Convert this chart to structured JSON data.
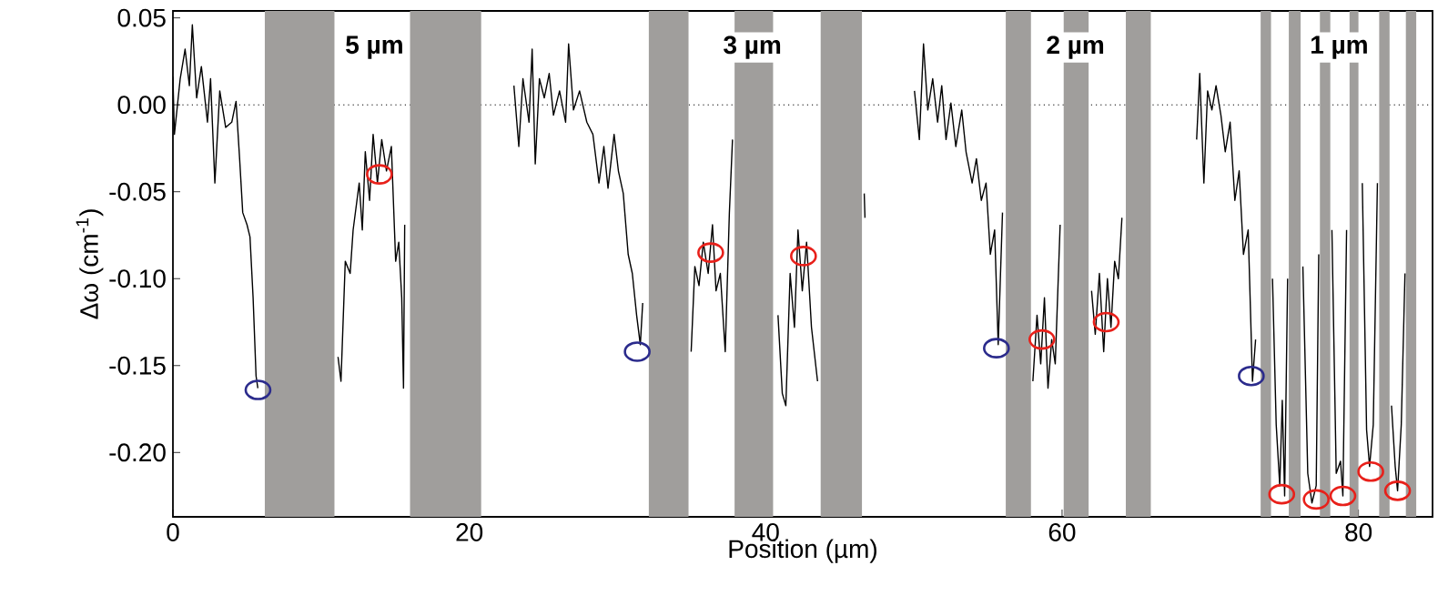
{
  "chart_data": {
    "type": "line",
    "xlabel": "Position (µm)",
    "ylabel": "Δω (cm$^{-1}$)",
    "xlim": [
      0,
      85
    ],
    "ylim": [
      -0.237,
      0.054
    ],
    "xticks": [
      0,
      20,
      40,
      60,
      80
    ],
    "yticks": [
      0.05,
      {
        "value": 0,
        "label": "0.00"
      },
      -0.05,
      {
        "value": -0.1,
        "label": "-0.10"
      },
      -0.15,
      {
        "value": -0.2,
        "label": "-0.20"
      }
    ],
    "grid": false,
    "ref_lines": [
      {
        "axis": "y",
        "value": 0,
        "color": "#000000",
        "line_style": "dotted"
      }
    ],
    "bands": [
      {
        "axis": "x",
        "from": 6.2,
        "to": 10.9,
        "color": "#a09e9c"
      },
      {
        "axis": "x",
        "from": 16.0,
        "to": 20.8,
        "color": "#a09e9c"
      },
      {
        "axis": "x",
        "from": 32.1,
        "to": 34.8,
        "color": "#a09e9c"
      },
      {
        "axis": "x",
        "from": 37.9,
        "to": 40.5,
        "color": "#a09e9c"
      },
      {
        "axis": "x",
        "from": 43.7,
        "to": 46.5,
        "color": "#a09e9c"
      },
      {
        "axis": "x",
        "from": 56.2,
        "to": 57.9,
        "color": "#a09e9c"
      },
      {
        "axis": "x",
        "from": 60.1,
        "to": 61.8,
        "color": "#a09e9c"
      },
      {
        "axis": "x",
        "from": 64.3,
        "to": 66.0,
        "color": "#a09e9c"
      },
      {
        "axis": "x",
        "from": 73.4,
        "to": 74.1,
        "color": "#a09e9c"
      },
      {
        "axis": "x",
        "from": 75.3,
        "to": 76.1,
        "color": "#a09e9c"
      },
      {
        "axis": "x",
        "from": 77.4,
        "to": 78.1,
        "color": "#a09e9c"
      },
      {
        "axis": "x",
        "from": 79.4,
        "to": 80.0,
        "color": "#a09e9c"
      },
      {
        "axis": "x",
        "from": 81.4,
        "to": 82.1,
        "color": "#a09e9c"
      },
      {
        "axis": "x",
        "from": 83.2,
        "to": 83.9,
        "color": "#a09e9c"
      }
    ],
    "annotations": [
      {
        "text": "5 µm",
        "x": 13.6,
        "y": 0.033
      },
      {
        "text": "3 µm",
        "x": 39.1,
        "y": 0.033
      },
      {
        "text": "2 µm",
        "x": 60.9,
        "y": 0.033
      },
      {
        "text": "1 µm",
        "x": 78.7,
        "y": 0.033
      }
    ],
    "series": [
      {
        "color": "#000000",
        "marker": "none",
        "line_style": "solid",
        "x": [
          0.0,
          0.1,
          0.49,
          0.82,
          1.11,
          1.31,
          1.6,
          1.92,
          2.33,
          2.54,
          2.83,
          3.16,
          3.56,
          3.97,
          4.26,
          4.5,
          4.71,
          5.0,
          5.2,
          5.41,
          5.61,
          5.73,
          null,
          11.14,
          11.34,
          11.63,
          11.96,
          12.16,
          12.57,
          12.78,
          12.98,
          13.27,
          13.51,
          13.8,
          14.09,
          14.41,
          14.74,
          15.03,
          15.24,
          15.44,
          15.56,
          15.64,
          null,
          23.01,
          23.34,
          23.62,
          24.03,
          24.24,
          24.45,
          24.73,
          25.06,
          25.39,
          25.68,
          26.09,
          26.5,
          26.7,
          27.03,
          27.44,
          27.93,
          28.34,
          28.75,
          29.08,
          29.36,
          29.77,
          30.06,
          30.39,
          30.72,
          31.0,
          31.29,
          31.54,
          31.7,
          null,
          34.97,
          35.22,
          35.5,
          35.79,
          36.12,
          36.41,
          36.65,
          36.94,
          37.27,
          37.55,
          37.76,
          null,
          40.83,
          41.12,
          41.36,
          41.65,
          41.94,
          42.18,
          42.47,
          42.76,
          43.09,
          43.5,
          null,
          46.65,
          46.7,
          null,
          50.04,
          50.37,
          50.65,
          50.94,
          51.27,
          51.6,
          51.88,
          52.17,
          52.5,
          52.83,
          53.23,
          53.52,
          53.93,
          54.22,
          54.55,
          54.87,
          55.16,
          55.45,
          55.69,
          55.98,
          null,
          58.03,
          58.31,
          58.56,
          58.81,
          59.05,
          59.3,
          59.54,
          59.87,
          null,
          61.99,
          62.24,
          62.52,
          62.81,
          63.06,
          63.3,
          63.55,
          63.8,
          64.04,
          null,
          69.08,
          69.29,
          69.57,
          69.82,
          70.11,
          70.39,
          70.72,
          71.01,
          71.34,
          71.66,
          71.95,
          72.24,
          72.56,
          72.85,
          73.06,
          null,
          74.2,
          74.45,
          74.69,
          74.86,
          75.02,
          75.22,
          null,
          76.25,
          76.58,
          76.86,
          77.15,
          77.32,
          null,
          78.21,
          78.5,
          78.79,
          78.95,
          79.2,
          null,
          80.26,
          80.55,
          80.75,
          81.0,
          81.28,
          null,
          82.23,
          82.48,
          82.64,
          82.89,
          83.14
        ],
        "values": [
          0.016,
          -0.017,
          0.015,
          0.032,
          0.011,
          0.046,
          0.004,
          0.022,
          -0.01,
          0.015,
          -0.045,
          0.008,
          -0.013,
          -0.01,
          0.002,
          -0.031,
          -0.062,
          -0.069,
          -0.076,
          -0.111,
          -0.156,
          -0.163,
          null,
          -0.145,
          -0.159,
          -0.09,
          -0.097,
          -0.072,
          -0.045,
          -0.072,
          -0.027,
          -0.055,
          -0.017,
          -0.045,
          -0.02,
          -0.038,
          -0.024,
          -0.09,
          -0.079,
          -0.111,
          -0.163,
          -0.069,
          null,
          0.011,
          -0.024,
          0.015,
          -0.01,
          0.032,
          -0.034,
          0.015,
          0.004,
          0.018,
          -0.006,
          0.008,
          -0.01,
          0.035,
          -0.003,
          0.008,
          -0.01,
          -0.017,
          -0.045,
          -0.024,
          -0.048,
          -0.017,
          -0.038,
          -0.051,
          -0.086,
          -0.097,
          -0.121,
          -0.138,
          -0.114,
          null,
          -0.142,
          -0.093,
          -0.104,
          -0.079,
          -0.097,
          -0.069,
          -0.107,
          -0.097,
          -0.142,
          -0.062,
          -0.02,
          null,
          -0.121,
          -0.166,
          -0.173,
          -0.097,
          -0.128,
          -0.072,
          -0.107,
          -0.079,
          -0.128,
          -0.159,
          null,
          -0.051,
          -0.065,
          null,
          0.008,
          -0.02,
          0.035,
          -0.003,
          0.015,
          -0.01,
          0.011,
          -0.02,
          0.001,
          -0.024,
          -0.003,
          -0.027,
          -0.045,
          -0.031,
          -0.055,
          -0.045,
          -0.086,
          -0.072,
          -0.138,
          -0.062,
          null,
          -0.159,
          -0.121,
          -0.149,
          -0.111,
          -0.163,
          -0.135,
          -0.149,
          -0.069,
          null,
          -0.107,
          -0.132,
          -0.097,
          -0.142,
          -0.1,
          -0.128,
          -0.09,
          -0.1,
          -0.065,
          null,
          -0.02,
          0.018,
          -0.045,
          0.008,
          -0.003,
          0.011,
          -0.006,
          -0.027,
          -0.01,
          -0.055,
          -0.038,
          -0.086,
          -0.072,
          -0.159,
          -0.135,
          null,
          -0.1,
          -0.184,
          -0.219,
          -0.17,
          -0.225,
          -0.1,
          null,
          -0.093,
          -0.212,
          -0.229,
          -0.219,
          -0.086,
          null,
          -0.072,
          -0.212,
          -0.205,
          -0.225,
          -0.072,
          null,
          -0.045,
          -0.187,
          -0.208,
          -0.184,
          -0.045,
          null,
          -0.173,
          -0.208,
          -0.222,
          -0.184,
          -0.097
        ]
      },
      {
        "type": "scatter",
        "color": "#2b2b8c",
        "marker": "circle",
        "x": [
          5.74,
          31.33,
          55.57,
          72.77
        ],
        "values": [
          -0.164,
          -0.142,
          -0.14,
          -0.156
        ]
      },
      {
        "type": "scatter",
        "color": "#e8201a",
        "marker": "circle",
        "x": [
          13.93,
          36.29,
          42.55,
          58.64,
          62.98,
          74.82,
          77.15,
          78.95,
          80.83,
          82.64
        ],
        "values": [
          -0.04,
          -0.085,
          -0.087,
          -0.135,
          -0.125,
          -0.224,
          -0.227,
          -0.225,
          -0.211,
          -0.222
        ]
      }
    ]
  }
}
